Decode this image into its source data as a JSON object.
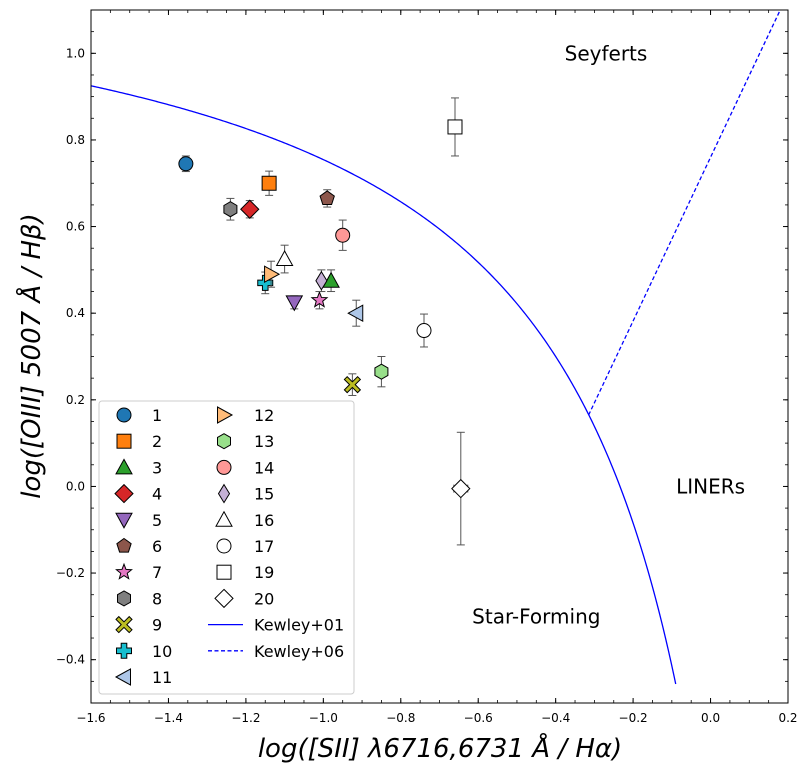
{
  "chart_data": {
    "type": "scatter",
    "title": "",
    "xlabel": "log([SII] λ6716,6731 Å / Hα)",
    "ylabel": "log([OIII] 5007 Å / Hβ)",
    "xlim": [
      -1.6,
      0.2
    ],
    "ylim": [
      -0.5,
      1.1
    ],
    "x_ticks": [
      -1.6,
      -1.4,
      -1.2,
      -1.0,
      -0.8,
      -0.6,
      -0.4,
      -0.2,
      0.0,
      0.2
    ],
    "x_tick_labels": [
      "−1.6",
      "−1.4",
      "−1.2",
      "−1.0",
      "−0.8",
      "−0.6",
      "−0.4",
      "−0.2",
      "0.0",
      "0.2"
    ],
    "y_ticks": [
      -0.4,
      -0.2,
      0.0,
      0.2,
      0.4,
      0.6,
      0.8,
      1.0
    ],
    "y_tick_labels": [
      "−0.4",
      "−0.2",
      "0.0",
      "0.2",
      "0.4",
      "0.6",
      "0.8",
      "1.0"
    ],
    "grid": false,
    "legend_position": "lower-left",
    "region_labels": [
      {
        "text": "Seyferts",
        "x": -0.27,
        "y": 1.0
      },
      {
        "text": "LINERs",
        "x": -0.0,
        "y": 0.0
      },
      {
        "text": "Star-Forming",
        "x": -0.45,
        "y": -0.3
      }
    ],
    "lines": [
      {
        "name": "Kewley+01",
        "style": "solid",
        "color": "#0000ff",
        "equation": "y = 0.72/(x - 0.32) + 1.30",
        "x_range": [
          -1.6,
          -0.09
        ]
      },
      {
        "name": "Kewley+06",
        "style": "dashed",
        "color": "#0000ff",
        "equation": "y = 1.89x + 0.76",
        "x_range": [
          -0.315,
          0.18
        ]
      }
    ],
    "series": [
      {
        "name": "1",
        "marker": "circle",
        "color": "#1f77b4",
        "filled": true,
        "x": -1.355,
        "y": 0.745,
        "yerr": 0.018
      },
      {
        "name": "2",
        "marker": "square",
        "color": "#ff7f0e",
        "filled": true,
        "x": -1.14,
        "y": 0.7,
        "yerr": 0.028
      },
      {
        "name": "3",
        "marker": "triangle-up",
        "color": "#2ca02c",
        "filled": true,
        "x": -0.98,
        "y": 0.475,
        "yerr": 0.025
      },
      {
        "name": "4",
        "marker": "diamond",
        "color": "#d62728",
        "filled": true,
        "x": -1.19,
        "y": 0.64,
        "yerr": 0.02
      },
      {
        "name": "5",
        "marker": "triangle-down",
        "color": "#9467bd",
        "filled": true,
        "x": -1.075,
        "y": 0.425,
        "yerr": 0.015
      },
      {
        "name": "6",
        "marker": "pentagon",
        "color": "#8c564b",
        "filled": true,
        "x": -0.99,
        "y": 0.665,
        "yerr": 0.02
      },
      {
        "name": "7",
        "marker": "star",
        "color": "#e377c2",
        "filled": true,
        "x": -1.01,
        "y": 0.43,
        "yerr": 0.02
      },
      {
        "name": "8",
        "marker": "hexagon",
        "color": "#7f7f7f",
        "filled": true,
        "x": -1.24,
        "y": 0.64,
        "yerr": 0.025
      },
      {
        "name": "9",
        "marker": "x-filled",
        "color": "#bcbd22",
        "filled": true,
        "x": -0.925,
        "y": 0.235,
        "yerr": 0.025
      },
      {
        "name": "10",
        "marker": "plus-filled",
        "color": "#17becf",
        "filled": true,
        "x": -1.15,
        "y": 0.47,
        "yerr": 0.025
      },
      {
        "name": "11",
        "marker": "triangle-left",
        "color": "#aec7e8",
        "filled": true,
        "x": -0.915,
        "y": 0.4,
        "yerr": 0.03
      },
      {
        "name": "12",
        "marker": "triangle-right",
        "color": "#ffbb78",
        "filled": true,
        "x": -1.135,
        "y": 0.49,
        "yerr": 0.03
      },
      {
        "name": "13",
        "marker": "hexagon",
        "color": "#98df8a",
        "filled": true,
        "x": -0.85,
        "y": 0.265,
        "yerr": 0.035
      },
      {
        "name": "14",
        "marker": "circle",
        "color": "#ff9896",
        "filled": true,
        "x": -0.95,
        "y": 0.58,
        "yerr": 0.035
      },
      {
        "name": "15",
        "marker": "thin-diamond",
        "color": "#c5b0d5",
        "filled": true,
        "x": -1.005,
        "y": 0.475,
        "yerr": 0.025
      },
      {
        "name": "16",
        "marker": "triangle-up",
        "color": "#ffffff",
        "filled": false,
        "x": -1.1,
        "y": 0.525,
        "yerr": 0.032
      },
      {
        "name": "17",
        "marker": "circle",
        "color": "#ffffff",
        "filled": false,
        "x": -0.74,
        "y": 0.36,
        "yerr": 0.038
      },
      {
        "name": "19",
        "marker": "square",
        "color": "#ffffff",
        "filled": false,
        "x": -0.66,
        "y": 0.83,
        "yerr": 0.067,
        "xerr": 0.018
      },
      {
        "name": "20",
        "marker": "diamond",
        "color": "#ffffff",
        "filled": false,
        "x": -0.645,
        "y": -0.005,
        "yerr": 0.13,
        "xerr": 0.018
      }
    ]
  }
}
